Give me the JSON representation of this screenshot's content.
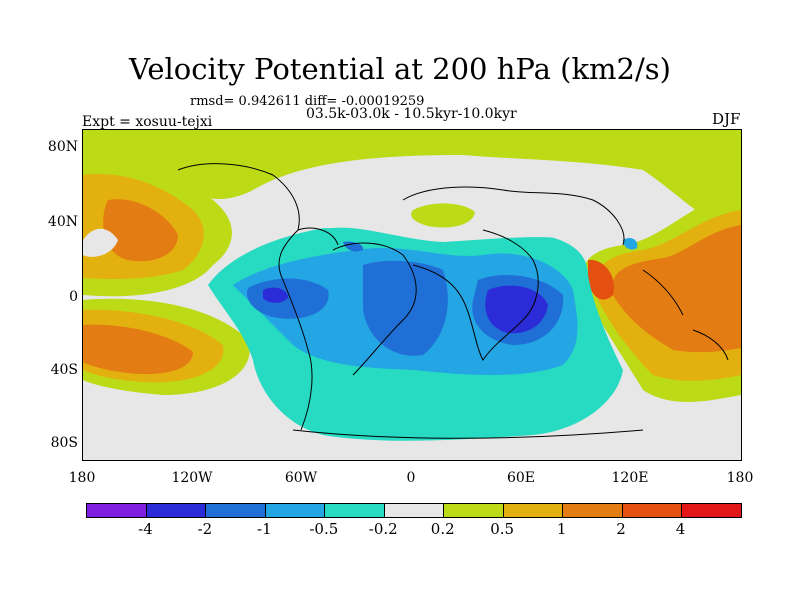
{
  "title": "Velocity Potential at 200 hPa (km2/s)",
  "stats": "rmsd= 0.942611 diff= -0.00019259",
  "subtitle": "03.5k-03.0k - 10.5kyr-10.0kyr",
  "expt": "Expt = xosuu-tejxi",
  "season": "DJF",
  "axes": {
    "y_labels": [
      "80N",
      "40N",
      "0",
      "40S",
      "80S"
    ],
    "x_labels": [
      "180",
      "120W",
      "60W",
      "0",
      "60E",
      "120E",
      "180"
    ]
  },
  "colorbar": {
    "colors": [
      "#7f1fe0",
      "#2b2bd8",
      "#1f6fd6",
      "#23a6e3",
      "#27dbc2",
      "#e7e7e7",
      "#bcdb16",
      "#e3b10f",
      "#e37c12",
      "#e35010",
      "#e21818"
    ],
    "labels": [
      "-4",
      "-2",
      "-1",
      "-0.5",
      "-0.2",
      "0.2",
      "0.5",
      "1",
      "2",
      "4"
    ]
  }
}
